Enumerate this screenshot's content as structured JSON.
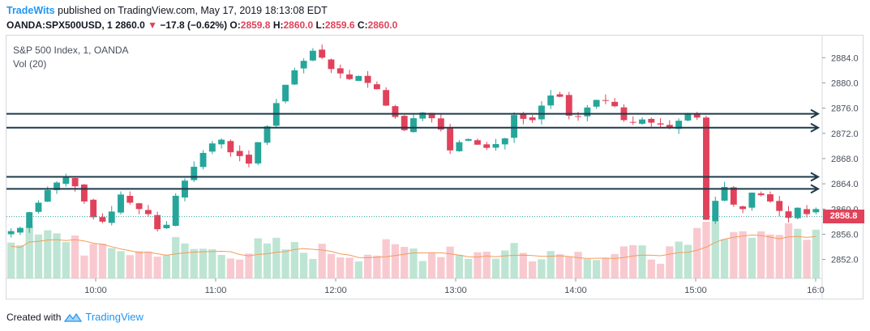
{
  "header": {
    "brand": "TradeWits",
    "published": "published on TradingView.com, May 17, 2019 18:13:08 EDT"
  },
  "ohlc": {
    "symbol": "OANDA:SPX500USD, 1",
    "last": "2860.0",
    "change": "−17.8 (−0.62%)",
    "o_label": "O:",
    "o": "2859.8",
    "h_label": "H:",
    "h": "2860.0",
    "l_label": "L:",
    "l": "2859.6",
    "c_label": "C:",
    "c": "2860.0"
  },
  "legend": {
    "series": "S&P 500 Index, 1, OANDA",
    "volume": "Vol (20)"
  },
  "price_tag": "2858.8",
  "footer": {
    "created_with": "Created with",
    "brand": "TradingView"
  },
  "colors": {
    "up": "#26a69a",
    "down": "#e0425b",
    "up_vol": "#a8dcc4",
    "down_vol": "#f5b8c0",
    "ma": "#f39c5b",
    "hline": "#1f3a4a",
    "brand": "#2196f3"
  },
  "chart_data": {
    "type": "candlestick",
    "yticks": [
      2852.0,
      2856.0,
      2860.0,
      2864.0,
      2868.0,
      2872.0,
      2876.0,
      2880.0,
      2884.0
    ],
    "xticks": [
      "10:00",
      "11:00",
      "12:00",
      "13:00",
      "14:00",
      "15:00",
      "16:0"
    ],
    "ylim": [
      2849.0,
      2887.5
    ],
    "horizontal_levels": [
      2875.1,
      2872.9,
      2865.1,
      2863.2
    ],
    "last_price": 2858.8,
    "series_close": [
      2856.5,
      2857.0,
      2859.5,
      2861.0,
      2863.0,
      2864.2,
      2865.1,
      2863.6,
      2861.2,
      2858.7,
      2858.0,
      2859.6,
      2862.3,
      2861.0,
      2860.0,
      2859.2,
      2856.8,
      2857.5,
      2862.1,
      2864.5,
      2866.7,
      2868.9,
      2870.4,
      2871.0,
      2869.0,
      2868.4,
      2867.2,
      2870.6,
      2873.1,
      2876.8,
      2879.7,
      2882.0,
      2883.5,
      2885.1,
      2884.0,
      2882.2,
      2881.5,
      2880.6,
      2881.1,
      2880.0,
      2879.0,
      2876.4,
      2874.6,
      2872.5,
      2874.4,
      2875.3,
      2874.4,
      2872.6,
      2869.3,
      2870.6,
      2871.1,
      2870.2,
      2869.7,
      2870.3,
      2871.2,
      2874.9,
      2874.3,
      2874.1,
      2876.4,
      2878.0,
      2877.8,
      2874.8,
      2874.7,
      2876.1,
      2877.3,
      2877.2,
      2876.3,
      2874.1,
      2873.8,
      2874.2,
      2873.7,
      2873.4,
      2872.8,
      2874.0,
      2875.2,
      2874.5,
      2858.3,
      2861.3,
      2863.5,
      2860.7,
      2860.0,
      2862.6,
      2862.2,
      2861.2,
      2859.7,
      2858.6,
      2860.2,
      2859.2,
      2860.0
    ]
  }
}
